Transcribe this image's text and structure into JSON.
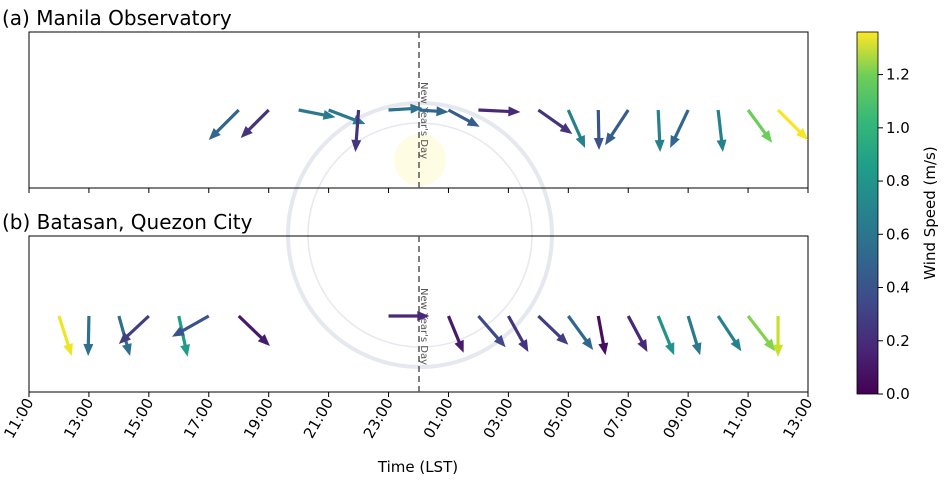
{
  "chart_data": {
    "type": "quiver",
    "xlabel": "Time (LST)",
    "x_tick_labels": [
      "11:00",
      "13:00",
      "15:00",
      "17:00",
      "19:00",
      "21:00",
      "23:00",
      "01:00",
      "03:00",
      "05:00",
      "07:00",
      "09:00",
      "11:00",
      "13:00"
    ],
    "x_range_hours_from_start": [
      0,
      26
    ],
    "annotation": {
      "label": "New Year's Day",
      "hour": 13
    },
    "colorbar": {
      "label": "Wind Speed (m/s)",
      "range": [
        0,
        1.36
      ],
      "ticks": [
        "0.0",
        "0.2",
        "0.4",
        "0.6",
        "0.8",
        "1.0",
        "1.2"
      ],
      "tick_values": [
        0,
        0.2,
        0.4,
        0.6,
        0.8,
        1.0,
        1.2
      ],
      "colormap": "viridis"
    },
    "panels": [
      {
        "title": "(a) Manila Observatory",
        "arrows": [
          {
            "hour": 7,
            "u": -0.75,
            "v": -0.75,
            "speed": 0.45
          },
          {
            "hour": 8,
            "u": -0.7,
            "v": -0.7,
            "speed": 0.2
          },
          {
            "hour": 9,
            "u": 0.92,
            "v": -0.18,
            "speed": 0.55
          },
          {
            "hour": 10,
            "u": 0.92,
            "v": -0.35,
            "speed": 0.55
          },
          {
            "hour": 11,
            "u": -0.08,
            "v": -1.05,
            "speed": 0.2
          },
          {
            "hour": 12,
            "u": 0.85,
            "v": 0.05,
            "speed": 0.5
          },
          {
            "hour": 13,
            "u": 0.75,
            "v": -0.05,
            "speed": 0.45
          },
          {
            "hour": 14,
            "u": 0.78,
            "v": -0.42,
            "speed": 0.4
          },
          {
            "hour": 15,
            "u": 1.05,
            "v": -0.05,
            "speed": 0.15
          },
          {
            "hour": 17,
            "u": 0.85,
            "v": -0.6,
            "speed": 0.2
          },
          {
            "hour": 18,
            "u": 0.42,
            "v": -0.95,
            "speed": 0.6
          },
          {
            "hour": 19,
            "u": 0.02,
            "v": -1.0,
            "speed": 0.35
          },
          {
            "hour": 20,
            "u": -0.58,
            "v": -0.88,
            "speed": 0.4
          },
          {
            "hour": 21,
            "u": 0.05,
            "v": -1.05,
            "speed": 0.6
          },
          {
            "hour": 22,
            "u": -0.45,
            "v": -0.95,
            "speed": 0.45
          },
          {
            "hour": 23,
            "u": 0.12,
            "v": -1.05,
            "speed": 0.6
          },
          {
            "hour": 24,
            "u": 0.6,
            "v": -0.82,
            "speed": 1.05
          },
          {
            "hour": 25,
            "u": 0.75,
            "v": -0.75,
            "speed": 1.35
          }
        ]
      },
      {
        "title": "(b) Batasan, Quezon City",
        "arrows": [
          {
            "hour": 1,
            "u": 0.32,
            "v": -1.0,
            "speed": 1.33
          },
          {
            "hour": 2,
            "u": -0.02,
            "v": -1.0,
            "speed": 0.5
          },
          {
            "hour": 3,
            "u": 0.28,
            "v": -1.0,
            "speed": 0.5
          },
          {
            "hour": 4,
            "u": -0.75,
            "v": -0.7,
            "speed": 0.25
          },
          {
            "hour": 5,
            "u": 0.22,
            "v": -1.02,
            "speed": 0.75
          },
          {
            "hour": 6,
            "u": -0.92,
            "v": -0.52,
            "speed": 0.35
          },
          {
            "hour": 7,
            "u": 0.78,
            "v": -0.75,
            "speed": 0.1
          },
          {
            "hour": 12,
            "u": 1.02,
            "v": 0.0,
            "speed": 0.15
          },
          {
            "hour": 14,
            "u": 0.38,
            "v": -0.92,
            "speed": 0.1
          },
          {
            "hour": 15,
            "u": 0.68,
            "v": -0.78,
            "speed": 0.3
          },
          {
            "hour": 16,
            "u": 0.5,
            "v": -0.9,
            "speed": 0.2
          },
          {
            "hour": 17,
            "u": 0.75,
            "v": -0.72,
            "speed": 0.25
          },
          {
            "hour": 18,
            "u": 0.62,
            "v": -0.85,
            "speed": 0.45
          },
          {
            "hour": 19,
            "u": 0.18,
            "v": -0.98,
            "speed": 0.05
          },
          {
            "hour": 20,
            "u": 0.48,
            "v": -0.9,
            "speed": 0.15
          },
          {
            "hour": 21,
            "u": 0.4,
            "v": -0.98,
            "speed": 0.7
          },
          {
            "hour": 22,
            "u": 0.3,
            "v": -0.98,
            "speed": 0.55
          },
          {
            "hour": 23,
            "u": 0.58,
            "v": -0.88,
            "speed": 0.6
          },
          {
            "hour": 24,
            "u": 0.68,
            "v": -0.88,
            "speed": 1.1
          },
          {
            "hour": 25,
            "u": 0.0,
            "v": -1.02,
            "speed": 1.25
          }
        ]
      }
    ]
  }
}
